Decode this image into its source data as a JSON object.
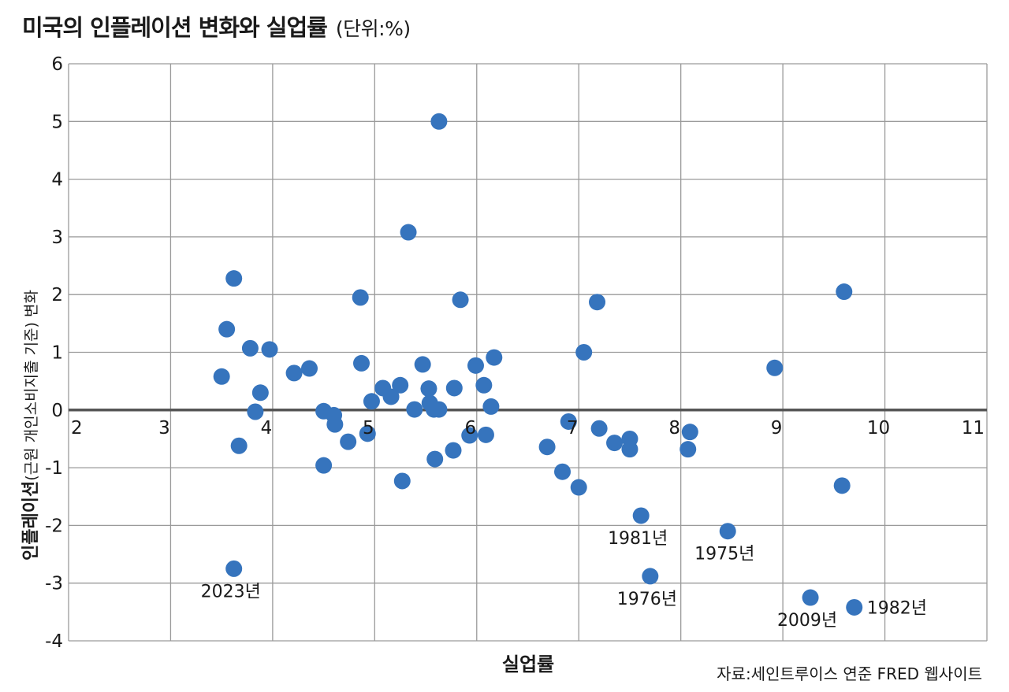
{
  "header": {
    "title": "미국의 인플레이션 변화와 실업률",
    "unit": "(단위:%)"
  },
  "source": "자료:세인트루이스 연준 FRED 웹사이트",
  "colors": {
    "point": "#3674bd",
    "grid": "#9a9a9a",
    "zero_line": "#555555"
  },
  "chart_data": {
    "type": "scatter",
    "xlabel": "실업률",
    "ylabel": "인플레이션",
    "ylabel_sub": "(근원 개인소비지출 기준) 변화",
    "xlim": [
      2,
      11
    ],
    "ylim": [
      -4,
      6
    ],
    "x_ticks": [
      "2",
      "3",
      "4",
      "5",
      "6",
      "7",
      "8",
      "9",
      "10",
      "11"
    ],
    "y_ticks": [
      "6",
      "5",
      "4",
      "3",
      "2",
      "1",
      "0",
      "-1",
      "-2",
      "-3",
      "-4"
    ],
    "grid": true,
    "points": [
      {
        "x": 3.5,
        "y": 0.58
      },
      {
        "x": 3.55,
        "y": 1.4
      },
      {
        "x": 3.62,
        "y": 2.28
      },
      {
        "x": 3.67,
        "y": -0.62
      },
      {
        "x": 3.78,
        "y": 1.07
      },
      {
        "x": 3.83,
        "y": -0.03
      },
      {
        "x": 3.88,
        "y": 0.3
      },
      {
        "x": 3.97,
        "y": 1.05
      },
      {
        "x": 4.21,
        "y": 0.64
      },
      {
        "x": 4.36,
        "y": 0.72
      },
      {
        "x": 4.5,
        "y": -0.02
      },
      {
        "x": 4.5,
        "y": -0.96
      },
      {
        "x": 4.6,
        "y": -0.09
      },
      {
        "x": 4.61,
        "y": -0.25
      },
      {
        "x": 4.74,
        "y": -0.55
      },
      {
        "x": 4.86,
        "y": 1.95
      },
      {
        "x": 4.87,
        "y": 0.81
      },
      {
        "x": 4.93,
        "y": -0.41
      },
      {
        "x": 4.97,
        "y": 0.15
      },
      {
        "x": 5.08,
        "y": 0.38
      },
      {
        "x": 5.16,
        "y": 0.23
      },
      {
        "x": 5.25,
        "y": 0.43
      },
      {
        "x": 5.27,
        "y": -1.23
      },
      {
        "x": 5.33,
        "y": 3.08
      },
      {
        "x": 5.39,
        "y": 0.01
      },
      {
        "x": 5.47,
        "y": 0.79
      },
      {
        "x": 5.53,
        "y": 0.37
      },
      {
        "x": 5.54,
        "y": 0.12
      },
      {
        "x": 5.58,
        "y": 0.01
      },
      {
        "x": 5.59,
        "y": -0.85
      },
      {
        "x": 5.63,
        "y": 5.0
      },
      {
        "x": 5.63,
        "y": 0.01
      },
      {
        "x": 5.77,
        "y": -0.7
      },
      {
        "x": 5.78,
        "y": 0.38
      },
      {
        "x": 5.84,
        "y": 1.91
      },
      {
        "x": 5.93,
        "y": -0.44
      },
      {
        "x": 5.99,
        "y": 0.77
      },
      {
        "x": 6.07,
        "y": 0.43
      },
      {
        "x": 6.09,
        "y": -0.43
      },
      {
        "x": 6.14,
        "y": 0.06
      },
      {
        "x": 6.17,
        "y": 0.91
      },
      {
        "x": 6.69,
        "y": -0.64
      },
      {
        "x": 6.84,
        "y": -1.07
      },
      {
        "x": 6.9,
        "y": -0.2
      },
      {
        "x": 7.0,
        "y": -1.34
      },
      {
        "x": 7.05,
        "y": 1.0
      },
      {
        "x": 7.18,
        "y": 1.87
      },
      {
        "x": 7.2,
        "y": -0.32
      },
      {
        "x": 7.35,
        "y": -0.57
      },
      {
        "x": 7.5,
        "y": -0.5
      },
      {
        "x": 7.5,
        "y": -0.68
      },
      {
        "x": 7.61,
        "y": -1.83
      },
      {
        "x": 7.7,
        "y": -2.88
      },
      {
        "x": 8.07,
        "y": -0.68
      },
      {
        "x": 8.09,
        "y": -0.38
      },
      {
        "x": 8.46,
        "y": -2.1
      },
      {
        "x": 8.92,
        "y": 0.73
      },
      {
        "x": 9.27,
        "y": -3.25
      },
      {
        "x": 9.58,
        "y": -1.31
      },
      {
        "x": 9.6,
        "y": 2.05
      },
      {
        "x": 9.7,
        "y": -3.42
      },
      {
        "x": 3.62,
        "y": -2.75
      }
    ],
    "annotations": [
      {
        "text": "2023년",
        "x": 3.62,
        "y": -2.75,
        "pos": "below"
      },
      {
        "text": "1981년",
        "x": 7.61,
        "y": -1.83,
        "pos": "below"
      },
      {
        "text": "1976년",
        "x": 7.7,
        "y": -2.88,
        "pos": "below"
      },
      {
        "text": "1975년",
        "x": 8.46,
        "y": -2.1,
        "pos": "below"
      },
      {
        "text": "2009년",
        "x": 9.27,
        "y": -3.25,
        "pos": "below"
      },
      {
        "text": "1982년",
        "x": 9.7,
        "y": -3.42,
        "pos": "right"
      }
    ]
  }
}
